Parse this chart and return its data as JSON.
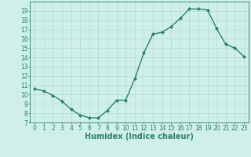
{
  "x": [
    0,
    1,
    2,
    3,
    4,
    5,
    6,
    7,
    8,
    9,
    10,
    11,
    12,
    13,
    14,
    15,
    16,
    17,
    18,
    19,
    20,
    21,
    22,
    23
  ],
  "y": [
    10.6,
    10.4,
    9.9,
    9.3,
    8.4,
    7.8,
    7.5,
    7.5,
    8.3,
    9.4,
    9.4,
    11.7,
    14.5,
    16.5,
    16.7,
    17.3,
    18.2,
    19.2,
    19.2,
    19.1,
    17.1,
    15.4,
    15.0,
    14.1
  ],
  "line_color": "#2e7d6e",
  "marker": "D",
  "marker_size": 2.0,
  "bg_color": "#cff0ea",
  "grid_color": "#b0dcd4",
  "xlabel": "Humidex (Indice chaleur)",
  "ylim": [
    7,
    20
  ],
  "xlim": [
    -0.5,
    23.5
  ],
  "yticks": [
    7,
    8,
    9,
    10,
    11,
    12,
    13,
    14,
    15,
    16,
    17,
    18,
    19
  ],
  "xticks": [
    0,
    1,
    2,
    3,
    4,
    5,
    6,
    7,
    8,
    9,
    10,
    11,
    12,
    13,
    14,
    15,
    16,
    17,
    18,
    19,
    20,
    21,
    22,
    23
  ],
  "tick_color": "#2e7d6e",
  "label_color": "#2e7d6e",
  "xlabel_fontsize": 7,
  "tick_fontsize": 5.5,
  "linewidth": 1.0
}
